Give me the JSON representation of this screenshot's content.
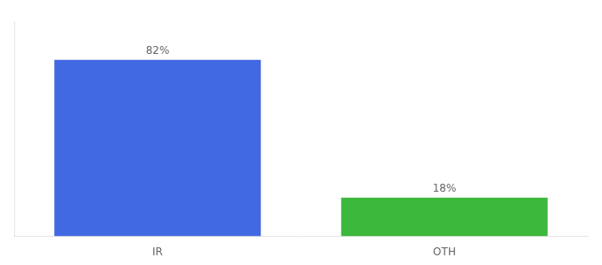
{
  "chart_data": {
    "type": "bar",
    "categories": [
      "IR",
      "OTH"
    ],
    "values": [
      82,
      18
    ],
    "colors": [
      "#4169e1",
      "#3cb83c"
    ],
    "value_labels": [
      "82%",
      "18%"
    ],
    "data_labels": true,
    "ylim": [
      0,
      100
    ],
    "tick_labels": "x",
    "grid": false
  }
}
